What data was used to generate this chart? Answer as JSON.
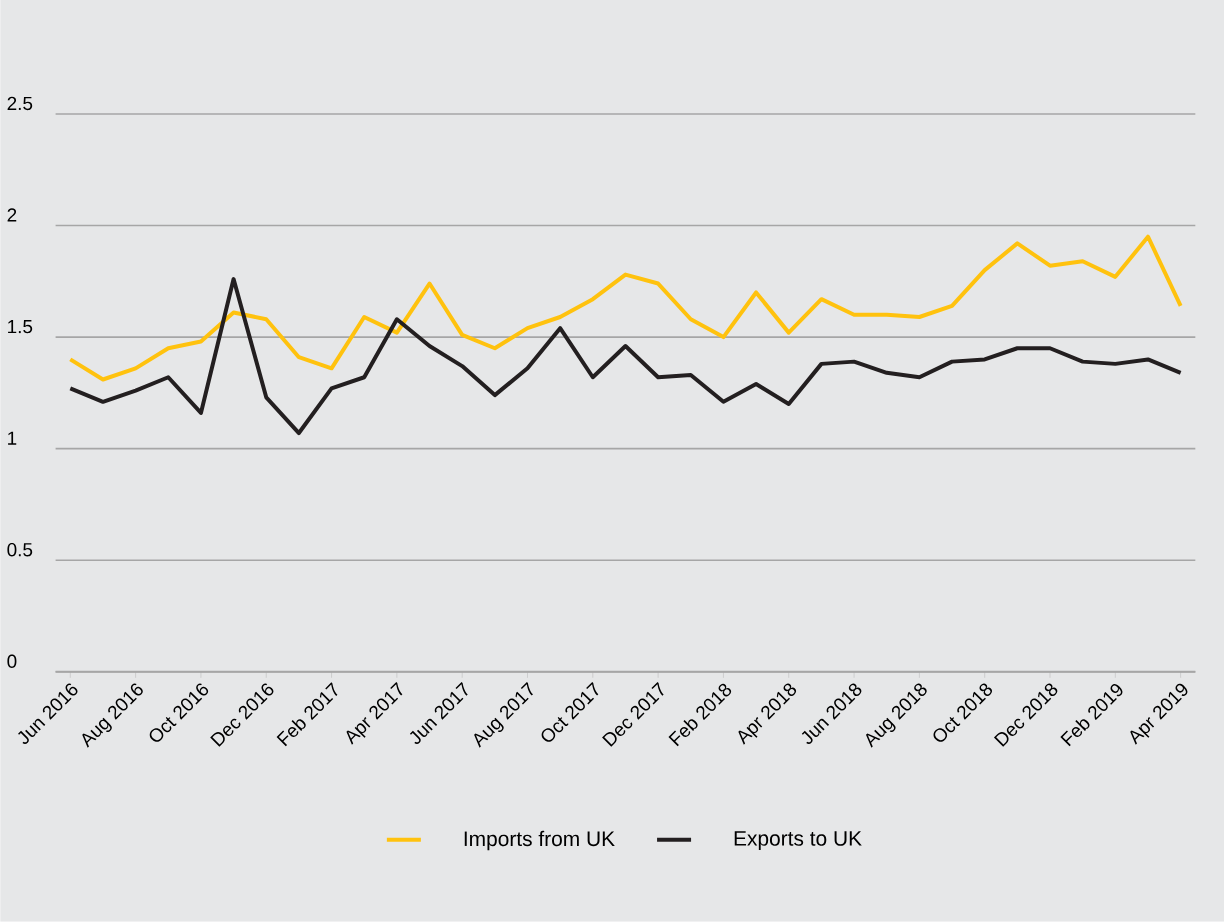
{
  "chart_data": {
    "type": "line",
    "categories": [
      "Jun 2016",
      null,
      "Aug 2016",
      null,
      "Oct 2016",
      null,
      "Dec 2016",
      null,
      "Feb 2017",
      null,
      "Apr 2017",
      null,
      "Jun 2017",
      null,
      "Aug 2017",
      null,
      "Oct 2017",
      null,
      "Dec 2017",
      null,
      "Feb 2018",
      null,
      "Apr 2018",
      null,
      "Jun 2018",
      null,
      "Aug 2018",
      null,
      "Oct 2018",
      null,
      "Dec 2018",
      null,
      "Feb 2019",
      null,
      "Apr 2019"
    ],
    "series": [
      {
        "name": "Imports from UK",
        "color": "#ffc20e",
        "values": [
          1.4,
          1.31,
          1.36,
          1.45,
          1.48,
          1.61,
          1.58,
          1.41,
          1.36,
          1.59,
          1.52,
          1.74,
          1.51,
          1.45,
          1.54,
          1.59,
          1.67,
          1.78,
          1.74,
          1.58,
          1.5,
          1.7,
          1.52,
          1.67,
          1.6,
          1.6,
          1.59,
          1.64,
          1.8,
          1.92,
          1.82,
          1.84,
          1.77,
          1.95,
          1.64
        ]
      },
      {
        "name": "Exports to UK",
        "color": "#231f20",
        "values": [
          1.27,
          1.21,
          1.26,
          1.32,
          1.16,
          1.76,
          1.23,
          1.07,
          1.27,
          1.32,
          1.58,
          1.46,
          1.37,
          1.24,
          1.36,
          1.54,
          1.32,
          1.46,
          1.32,
          1.33,
          1.21,
          1.29,
          1.2,
          1.38,
          1.39,
          1.34,
          1.32,
          1.39,
          1.4,
          1.45,
          1.45,
          1.39,
          1.38,
          1.4,
          1.34
        ]
      }
    ],
    "ylim": [
      0,
      2.5
    ],
    "yticks": [
      0,
      0.5,
      1,
      1.5,
      2,
      2.5
    ],
    "grid": "y",
    "legend": "bottom",
    "line_style": "solid"
  }
}
